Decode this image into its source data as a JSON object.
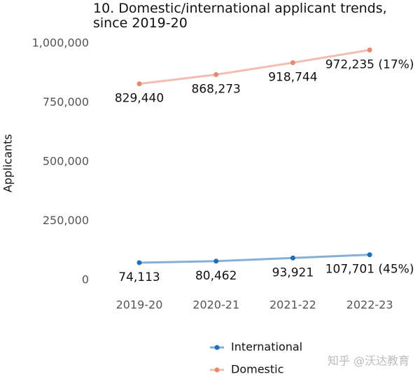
{
  "chart_data": {
    "type": "line",
    "title": "10. Domestic/international applicant trends, since 2019-20",
    "ylabel": "Applicants",
    "categories": [
      "2019-20",
      "2020-21",
      "2021-22",
      "2022-23"
    ],
    "series": [
      {
        "name": "International",
        "color": "#1f6fb4",
        "values": [
          74113,
          80462,
          93921,
          107701
        ],
        "value_labels": [
          "74,113",
          "80,462",
          "93,921",
          "107,701 (45%)"
        ]
      },
      {
        "name": "Domestic",
        "color": "#e8896f",
        "values": [
          829440,
          868273,
          918744,
          972235
        ],
        "value_labels": [
          "829,440",
          "868,273",
          "918,744",
          "972,235 (17%)"
        ]
      }
    ],
    "ylim": [
      0,
      1000000
    ],
    "yticks": [
      0,
      {
        "value": 250000,
        "label": "250,000"
      },
      {
        "value": 500000,
        "label": "500,000"
      },
      {
        "value": 750000,
        "label": "750,000"
      },
      {
        "value": 1000000,
        "label": "1,000,000"
      }
    ],
    "grid": false,
    "legend": "bottom",
    "watermark": "知乎 @沃达教育"
  }
}
